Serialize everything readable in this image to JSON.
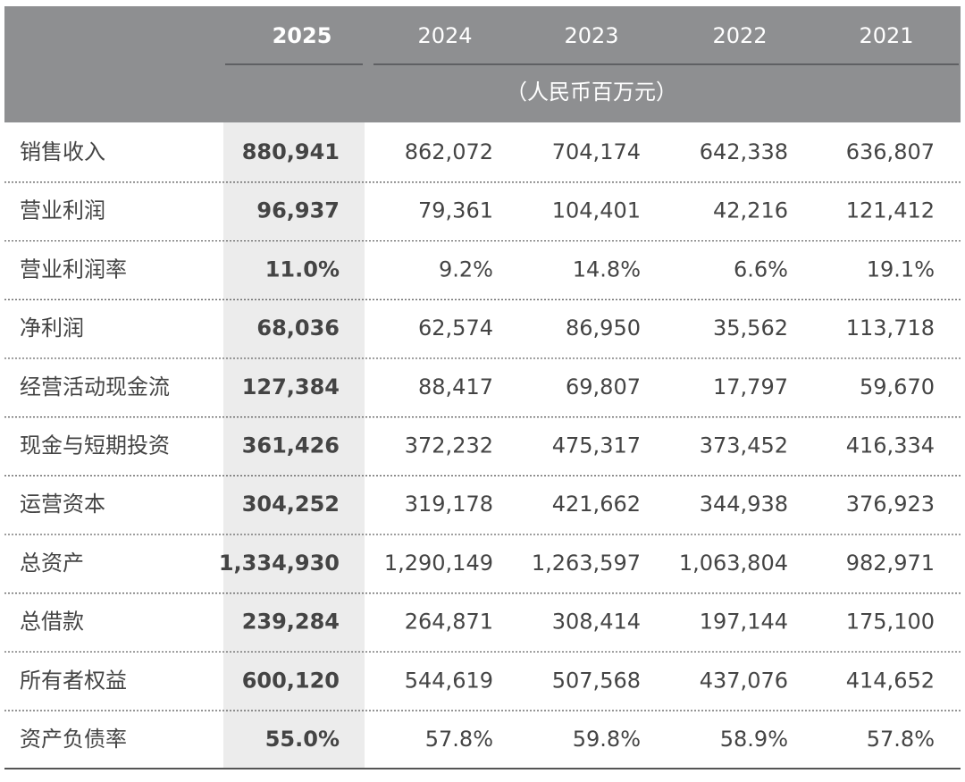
{
  "header": {
    "years": [
      "2025",
      "2024",
      "2023",
      "2022",
      "2021"
    ],
    "unit": "（人民币百万元）"
  },
  "table": {
    "rows": [
      [
        "销售收入",
        "880,941",
        "862,072",
        "704,174",
        "642,338",
        "636,807"
      ],
      [
        "营业利润",
        "96,937",
        "79,361",
        "104,401",
        "42,216",
        "121,412"
      ],
      [
        "营业利润率",
        "11.0%",
        "9.2%",
        "14.8%",
        "6.6%",
        "19.1%"
      ],
      [
        "净利润",
        "68,036",
        "62,574",
        "86,950",
        "35,562",
        "113,718"
      ],
      [
        "经营活动现金流",
        "127,384",
        "88,417",
        "69,807",
        "17,797",
        "59,670"
      ],
      [
        "现金与短期投资",
        "361,426",
        "372,232",
        "475,317",
        "373,452",
        "416,334"
      ],
      [
        "运营资本",
        "304,252",
        "319,178",
        "421,662",
        "344,938",
        "376,923"
      ],
      [
        "总资产",
        "1,334,930",
        "1,290,149",
        "1,263,597",
        "1,063,804",
        "982,971"
      ],
      [
        "总借款",
        "239,284",
        "264,871",
        "308,414",
        "197,144",
        "175,100"
      ],
      [
        "所有者权益",
        "600,120",
        "544,619",
        "507,568",
        "437,076",
        "414,652"
      ],
      [
        "资产负债率",
        "55.0%",
        "57.8%",
        "59.8%",
        "58.9%",
        "57.8%"
      ]
    ]
  }
}
